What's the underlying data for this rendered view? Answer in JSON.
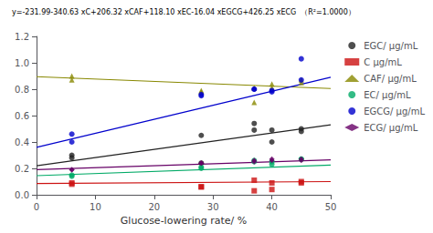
{
  "chart_data": {
    "type": "scatter",
    "xlabel": "Glucose-lowering rate/ %",
    "annotation": "y=-231.99-340.63 xC+206.32 xCAF+118.10 xEC-16.04 xEGCG+426.25 xECG  （R²=1.0000）",
    "xlim": [
      0,
      50
    ],
    "xticks": [
      0,
      10,
      20,
      30,
      40,
      50
    ],
    "ylim": [
      0.0,
      1.2
    ],
    "yticks": [
      {
        "value": 0.0,
        "label": "0.0"
      },
      0.2,
      0.4,
      0.6,
      0.8,
      {
        "value": 1.0,
        "label": "1.0"
      },
      1.2
    ],
    "grid": false,
    "legend": "right",
    "series": [
      {
        "name": "EGC/ μg/mL",
        "color": "#222222",
        "marker": "circle",
        "x": [
          6,
          6,
          28,
          28,
          37,
          37,
          40,
          40,
          45,
          45
        ],
        "values": [
          0.28,
          0.3,
          0.45,
          0.24,
          0.49,
          0.54,
          0.4,
          0.49,
          0.5,
          0.48
        ],
        "fit": {
          "x": [
            0,
            50
          ],
          "values": [
            0.22,
            0.53
          ]
        }
      },
      {
        "name": "C μg/mL",
        "color": "#cc1111",
        "marker": "rect",
        "x": [
          6,
          6,
          28,
          28,
          37,
          37,
          40,
          40,
          45,
          45
        ],
        "values": [
          0.08,
          0.09,
          0.06,
          0.06,
          0.11,
          0.03,
          0.04,
          0.09,
          0.1,
          0.09
        ],
        "fit": {
          "x": [
            0,
            50
          ],
          "values": [
            0.085,
            0.1
          ]
        }
      },
      {
        "name": "CAF/ μg/mL",
        "color": "#888800",
        "marker": "triangle",
        "x": [
          6,
          6,
          28,
          28,
          37,
          37,
          40,
          40,
          45,
          45
        ],
        "values": [
          0.9,
          0.87,
          0.79,
          0.78,
          0.81,
          0.7,
          0.84,
          0.81,
          0.87,
          0.85
        ],
        "fit": {
          "x": [
            0,
            50
          ],
          "values": [
            0.895,
            0.805
          ]
        }
      },
      {
        "name": "EC/ μg/mL",
        "color": "#00aa66",
        "marker": "circle",
        "x": [
          6,
          6,
          28,
          28,
          37,
          37,
          40,
          40,
          45,
          45
        ],
        "values": [
          0.15,
          0.14,
          0.21,
          0.2,
          0.25,
          0.26,
          0.23,
          0.25,
          0.27,
          0.27
        ],
        "fit": {
          "x": [
            0,
            50
          ],
          "values": [
            0.145,
            0.225
          ]
        }
      },
      {
        "name": "EGCG/ μg/mL",
        "color": "#0000cc",
        "marker": "circle",
        "x": [
          6,
          6,
          28,
          28,
          37,
          37,
          40,
          40,
          45,
          45
        ],
        "values": [
          0.4,
          0.46,
          0.75,
          0.76,
          0.8,
          0.8,
          0.79,
          0.78,
          1.03,
          0.87
        ],
        "fit": {
          "x": [
            0,
            50
          ],
          "values": [
            0.36,
            0.89
          ]
        }
      },
      {
        "name": "ECG/ μg/mL",
        "color": "#660066",
        "marker": "diamond",
        "x": [
          6,
          6,
          28,
          28,
          37,
          37,
          40,
          40,
          45,
          45
        ],
        "values": [
          0.19,
          0.19,
          0.24,
          0.24,
          0.26,
          0.25,
          0.26,
          0.27,
          0.26,
          0.27
        ],
        "fit": {
          "x": [
            0,
            50
          ],
          "values": [
            0.19,
            0.265
          ]
        }
      }
    ]
  }
}
